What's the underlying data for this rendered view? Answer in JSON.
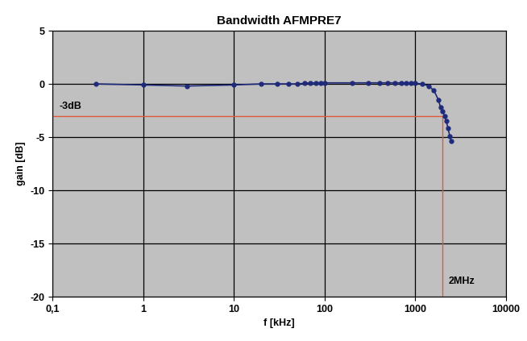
{
  "chart_data": {
    "type": "line",
    "title": "Bandwidth AFMPRE7",
    "x_label": "f [kHz]",
    "y_label": "gain [dB]",
    "log": "x",
    "grid": true,
    "marker": "o",
    "line_style": "solid",
    "color": "#1f2a7a",
    "x": [
      0.3,
      1,
      3,
      10,
      20,
      30,
      40,
      50,
      60,
      70,
      80,
      90,
      100,
      200,
      300,
      400,
      500,
      600,
      700,
      800,
      900,
      1000,
      1200,
      1400,
      1600,
      1800,
      1900,
      2000,
      2100,
      2200,
      2300,
      2400,
      2500
    ],
    "values": [
      0,
      -0.1,
      -0.2,
      -0.1,
      0,
      0,
      0,
      0,
      0.05,
      0.1,
      0.1,
      0.1,
      0.1,
      0.1,
      0.1,
      0.1,
      0.1,
      0.1,
      0.1,
      0.1,
      0.1,
      0.05,
      0,
      -0.2,
      -0.6,
      -1.5,
      -2.2,
      -2.6,
      -3.0,
      -3.5,
      -4.2,
      -4.9,
      -5.4
    ],
    "xlim": [
      0.1,
      10000
    ],
    "xticks": [
      {
        "value": 0.1,
        "label": "0,1"
      },
      1,
      10,
      100,
      1000,
      10000
    ],
    "ylim": [
      -20,
      5
    ],
    "yticks": [
      -20,
      -15,
      -10,
      -5,
      0,
      5
    ],
    "threshold": {
      "value": -3,
      "label": "-3dB"
    },
    "cutoff": {
      "value": 2000,
      "label": "2MHz"
    }
  }
}
